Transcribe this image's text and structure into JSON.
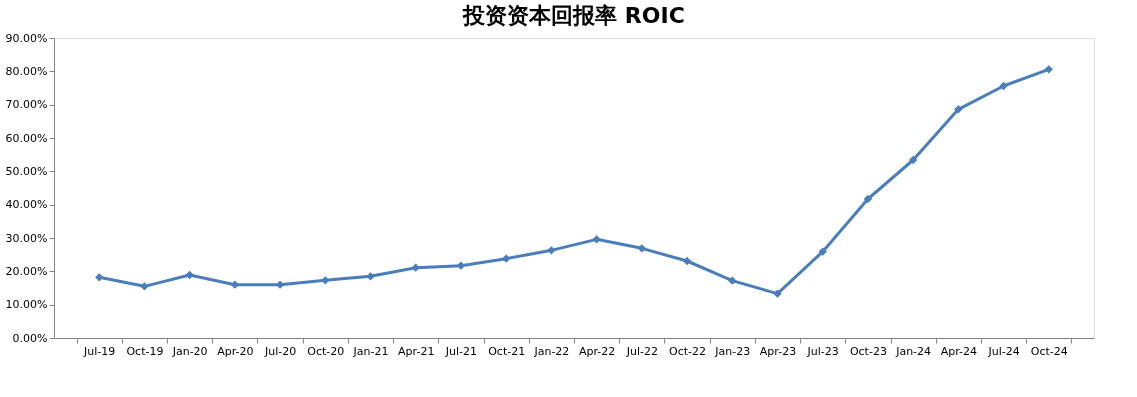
{
  "chart_data": {
    "type": "line",
    "title": "投资资本回报率 ROIC",
    "categories": [
      "Jul-19",
      "Oct-19",
      "Jan-20",
      "Apr-20",
      "Jul-20",
      "Oct-20",
      "Jan-21",
      "Apr-21",
      "Jul-21",
      "Oct-21",
      "Jan-22",
      "Apr-22",
      "Jul-22",
      "Oct-22",
      "Jan-23",
      "Apr-23",
      "Jul-23",
      "Oct-23",
      "Jan-24",
      "Apr-24",
      "Jul-24",
      "Oct-24"
    ],
    "series": [
      {
        "color": "#4a7ebb",
        "values": [
          18.2,
          15.5,
          18.9,
          16.0,
          16.0,
          17.3,
          18.5,
          21.1,
          21.7,
          23.8,
          26.3,
          29.6,
          26.9,
          23.1,
          17.2,
          13.3,
          25.9,
          41.7,
          53.4,
          68.6,
          75.6,
          80.6
        ]
      }
    ],
    "ylim": [
      0,
      90
    ],
    "yticks": [
      {
        "value": 0,
        "label": "0.00%"
      },
      {
        "value": 10,
        "label": "10.00%"
      },
      {
        "value": 20,
        "label": "20.00%"
      },
      {
        "value": 30,
        "label": "30.00%"
      },
      {
        "value": 40,
        "label": "40.00%"
      },
      {
        "value": 50,
        "label": "50.00%"
      },
      {
        "value": 60,
        "label": "60.00%"
      },
      {
        "value": 70,
        "label": "70.00%"
      },
      {
        "value": 80,
        "label": "80.00%"
      },
      {
        "value": 90,
        "label": "90.00%"
      }
    ],
    "grid": false,
    "legend": false,
    "marker": "diamond",
    "line_style": "solid"
  }
}
